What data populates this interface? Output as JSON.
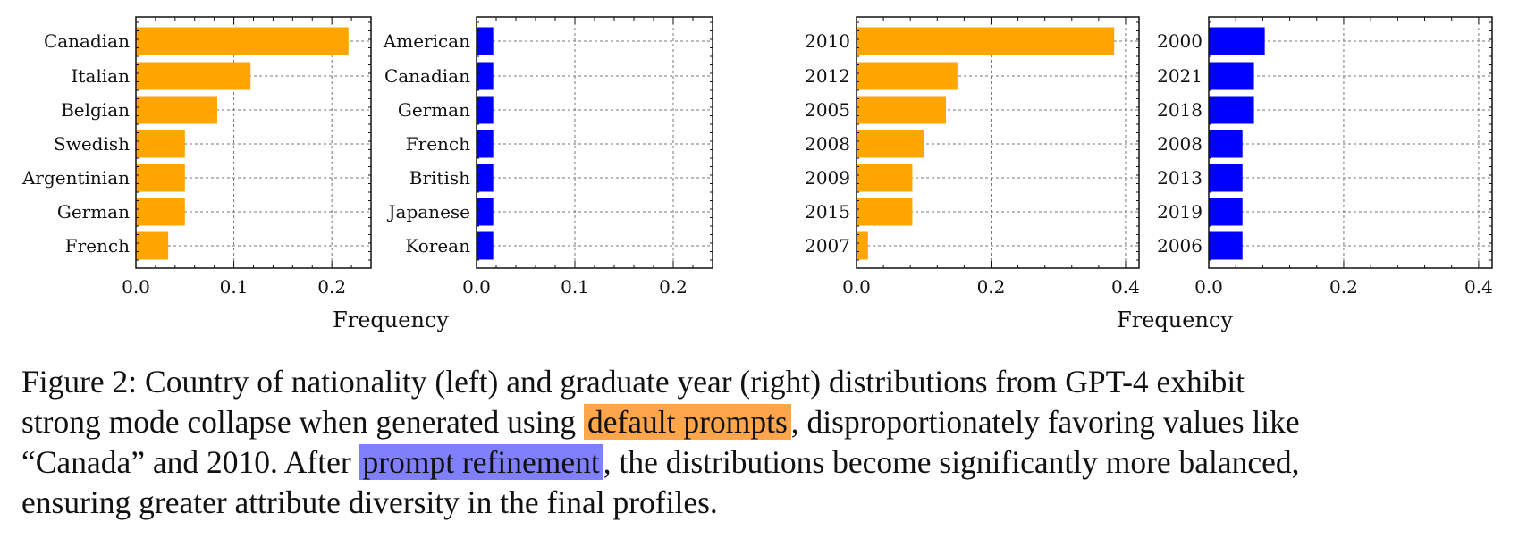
{
  "chart_data": [
    {
      "type": "bar",
      "orientation": "horizontal",
      "categories": [
        "Canadian",
        "Italian",
        "Belgian",
        "Swedish",
        "Argentinian",
        "German",
        "French"
      ],
      "values": [
        0.217,
        0.117,
        0.083,
        0.05,
        0.05,
        0.05,
        0.033
      ],
      "xlim": [
        0,
        0.24
      ],
      "xticks": [
        "0.0",
        "0.1",
        "0.2"
      ],
      "xtick_values": [
        0,
        0.1,
        0.2
      ],
      "color": "#FFA500",
      "grid": true
    },
    {
      "type": "bar",
      "orientation": "horizontal",
      "categories": [
        "American",
        "Canadian",
        "German",
        "French",
        "British",
        "Japanese",
        "Korean"
      ],
      "values": [
        0.017,
        0.017,
        0.017,
        0.017,
        0.017,
        0.017,
        0.017
      ],
      "xlim": [
        0,
        0.24
      ],
      "xticks": [
        "0.0",
        "0.1",
        "0.2"
      ],
      "xtick_values": [
        0,
        0.1,
        0.2
      ],
      "color": "#0000FF",
      "grid": true
    },
    {
      "type": "bar",
      "orientation": "horizontal",
      "categories": [
        "2010",
        "2012",
        "2005",
        "2008",
        "2009",
        "2015",
        "2007"
      ],
      "values": [
        0.383,
        0.15,
        0.133,
        0.1,
        0.083,
        0.083,
        0.017
      ],
      "xlim": [
        0,
        0.42
      ],
      "xticks": [
        "0.0",
        "0.2",
        "0.4"
      ],
      "xtick_values": [
        0,
        0.2,
        0.4
      ],
      "color": "#FFA500",
      "grid": true
    },
    {
      "type": "bar",
      "orientation": "horizontal",
      "categories": [
        "2000",
        "2021",
        "2018",
        "2008",
        "2013",
        "2019",
        "2006"
      ],
      "values": [
        0.083,
        0.067,
        0.067,
        0.05,
        0.05,
        0.05,
        0.05
      ],
      "xlim": [
        0,
        0.42
      ],
      "xticks": [
        "0.0",
        "0.2",
        "0.4"
      ],
      "xtick_values": [
        0,
        0.2,
        0.4
      ],
      "color": "#0000FF",
      "grid": true
    }
  ],
  "shared_xlabels": [
    "Frequency",
    "Frequency"
  ],
  "caption": {
    "line1": "Figure 2: Country of nationality (left) and graduate year (right) distributions from GPT-4 exhibit",
    "line2_pre": "strong mode collapse when generated using ",
    "highlight1": "default prompts",
    "line2_post": ", disproportionately favoring values like",
    "line3_pre": "“Canada” and 2010. After ",
    "highlight2": "prompt refinement",
    "line3_post": ", the distributions become significantly more balanced,",
    "line4": "ensuring greater attribute diversity in the final profiles.",
    "highlight1_color": "#FFA64D",
    "highlight2_color": "#8080FF"
  }
}
